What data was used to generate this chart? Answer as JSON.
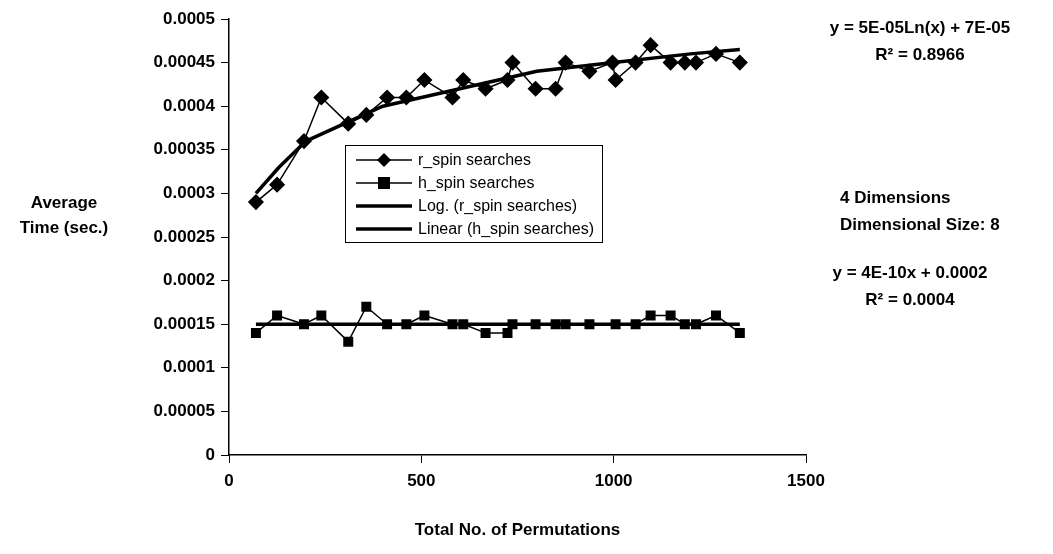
{
  "chart_data": {
    "type": "line",
    "xlabel": "Total No. of Permutations",
    "ylabel": "Average Time (sec.)",
    "xlim": [
      0,
      1500
    ],
    "xticks": [
      0,
      500,
      1000,
      1500
    ],
    "ylim": [
      0,
      0.0005
    ],
    "yticks": [
      0,
      {
        "value": 5e-05,
        "label": "0.00005"
      },
      0.0001,
      0.00015,
      0.0002,
      0.00025,
      0.0003,
      0.00035,
      0.0004,
      0.00045,
      0.0005
    ],
    "grid": false,
    "legend": "center",
    "line_style": "solid",
    "annotations": [
      "y = 5E-05Ln(x) + 7E-05",
      "R² = 0.8966",
      "4 Dimensions",
      "Dimensional Size: 8",
      "y = 4E-10x + 0.0002",
      "R² = 0.0004"
    ],
    "series": [
      {
        "name": "r_spin searches",
        "color": "#000000",
        "marker": "diamond",
        "x": [
          70,
          125,
          195,
          240,
          310,
          357,
          411,
          461,
          508,
          581,
          609,
          667,
          724,
          737,
          797,
          849,
          875,
          937,
          997,
          1005,
          1057,
          1096,
          1148,
          1185,
          1214,
          1266,
          1328
        ],
        "values": [
          0.00029,
          0.00031,
          0.00036,
          0.00041,
          0.00038,
          0.00039,
          0.00041,
          0.00041,
          0.00043,
          0.00041,
          0.00043,
          0.00042,
          0.00043,
          0.00045,
          0.00042,
          0.00042,
          0.00045,
          0.00044,
          0.00045,
          0.00043,
          0.00045,
          0.00047,
          0.00045,
          0.00045,
          0.00045,
          0.00046,
          0.00045
        ]
      },
      {
        "name": "h_spin searches",
        "color": "#000000",
        "marker": "square",
        "x": [
          70,
          125,
          195,
          240,
          310,
          357,
          411,
          461,
          508,
          581,
          609,
          667,
          724,
          737,
          797,
          849,
          875,
          937,
          997,
          1005,
          1057,
          1096,
          1148,
          1185,
          1214,
          1266,
          1328
        ],
        "values": [
          0.00014,
          0.00016,
          0.00015,
          0.00016,
          0.00013,
          0.00017,
          0.00015,
          0.00015,
          0.00016,
          0.00015,
          0.00015,
          0.00014,
          0.00014,
          0.00015,
          0.00015,
          0.00015,
          0.00015,
          0.00015,
          null,
          0.00015,
          0.00015,
          0.00016,
          0.00016,
          0.00015,
          0.00015,
          0.00016,
          0.00014
        ]
      },
      {
        "name": "Log. (r_spin searches)",
        "color": "#000000",
        "marker": "none",
        "x": [
          70,
          130,
          200,
          300,
          400,
          600,
          800,
          1000,
          1200,
          1328
        ],
        "values": [
          0.0003,
          0.00033,
          0.00036,
          0.00038,
          0.0004,
          0.00042,
          0.00044,
          0.00045,
          0.00046,
          0.000465
        ]
      },
      {
        "name": "Linear (h_spin searches)",
        "color": "#000000",
        "marker": "none",
        "x": [
          70,
          1328
        ],
        "values": [
          0.00015,
          0.00015
        ]
      }
    ]
  }
}
